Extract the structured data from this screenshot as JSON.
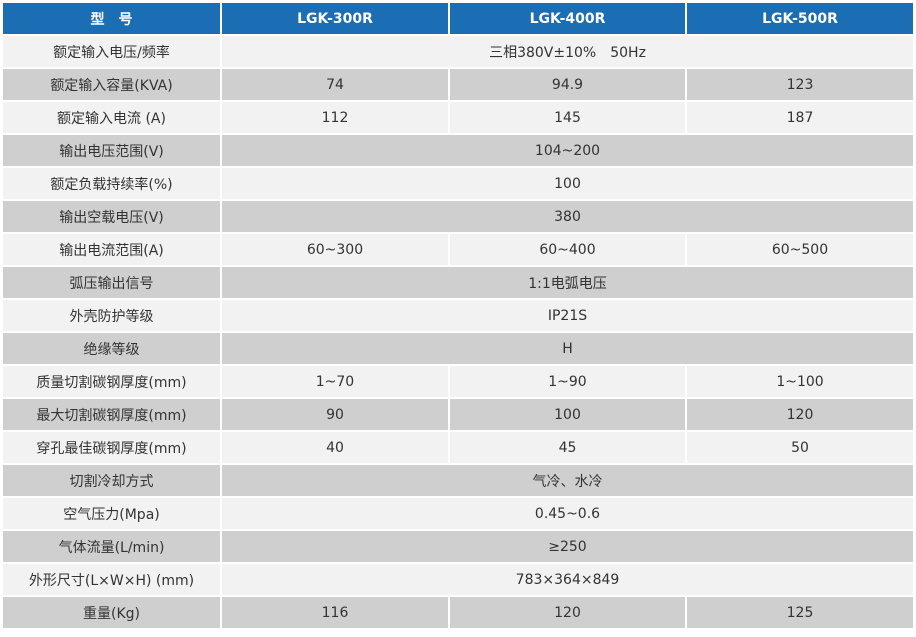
{
  "table": {
    "header": [
      "型　号",
      "LGK-300R",
      "LGK-400R",
      "LGK-500R"
    ],
    "rows": [
      [
        "额定输入电压/频率",
        "三相380V±10%　50Hz"
      ],
      [
        "额定输入容量(KVA)",
        "74",
        "94.9",
        "123"
      ],
      [
        "额定输入电流 (A)",
        "112",
        "145",
        "187"
      ],
      [
        "输出电压范围(V)",
        "104~200"
      ],
      [
        "额定负载持续率(%)",
        "100"
      ],
      [
        "输出空载电压(V)",
        "380"
      ],
      [
        "输出电流范围(A)",
        "60~300",
        "60~400",
        "60~500"
      ],
      [
        "弧压输出信号",
        "1:1电弧电压"
      ],
      [
        "外壳防护等级",
        "IP21S"
      ],
      [
        "绝缘等级",
        "H"
      ],
      [
        "质量切割碳钢厚度(mm)",
        "1~70",
        "1~90",
        "1~100"
      ],
      [
        "最大切割碳钢厚度(mm)",
        "90",
        "100",
        "120"
      ],
      [
        "穿孔最佳碳钢厚度(mm)",
        "40",
        "45",
        "50"
      ],
      [
        "切割冷却方式",
        "气冷、水冷"
      ],
      [
        "空气压力(Mpa)",
        "0.45~0.6"
      ],
      [
        "气体流量(L/min)",
        "≥250"
      ],
      [
        "外形尺寸(L×W×H) (mm)",
        "783×364×849"
      ],
      [
        "重量(Kg)",
        "116",
        "120",
        "125"
      ]
    ]
  }
}
